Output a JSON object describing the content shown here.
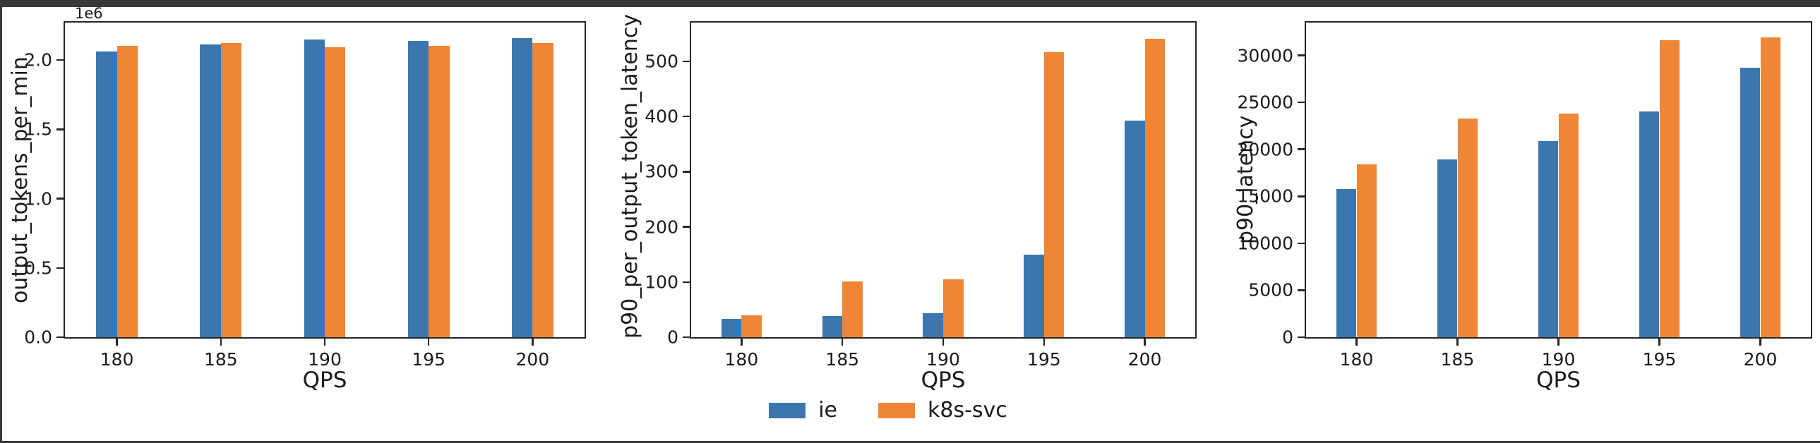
{
  "window": {
    "frame_color": "#38383a",
    "background": "#ffffff",
    "axis_color": "#262626",
    "text_color": "#1a1a1a"
  },
  "legend": {
    "items": [
      {
        "label": "ie",
        "color": "#3b76af"
      },
      {
        "label": "k8s-svc",
        "color": "#ee8636"
      }
    ],
    "position": "figure-bottom-center"
  },
  "chart_data": [
    {
      "type": "bar",
      "title": "",
      "ylabel": "output_tokens_per_min",
      "xlabel": "QPS",
      "y_offset_text": "1e6",
      "categories": [
        "180",
        "185",
        "190",
        "195",
        "200"
      ],
      "series": [
        {
          "name": "ie",
          "color": "#3b76af",
          "values": [
            2060000,
            2110000,
            2150000,
            2140000,
            2160000
          ]
        },
        {
          "name": "k8s-svc",
          "color": "#ee8636",
          "values": [
            2100000,
            2120000,
            2090000,
            2100000,
            2120000
          ]
        }
      ],
      "ylim": [
        0,
        2270000
      ],
      "yticks": [
        {
          "value": 0,
          "label": "0.0"
        },
        {
          "value": 500000,
          "label": "0.5"
        },
        {
          "value": 1000000,
          "label": "1.0"
        },
        {
          "value": 1500000,
          "label": "1.5"
        },
        {
          "value": 2000000,
          "label": "2.0"
        }
      ],
      "grid": false
    },
    {
      "type": "bar",
      "title": "",
      "ylabel": "p90_per_output_token_latency",
      "xlabel": "QPS",
      "y_offset_text": "",
      "categories": [
        "180",
        "185",
        "190",
        "195",
        "200"
      ],
      "series": [
        {
          "name": "ie",
          "color": "#3b76af",
          "values": [
            33,
            38,
            44,
            150,
            393
          ]
        },
        {
          "name": "k8s-svc",
          "color": "#ee8636",
          "values": [
            40,
            101,
            105,
            516,
            540
          ]
        }
      ],
      "ylim": [
        0,
        570
      ],
      "yticks": [
        {
          "value": 0,
          "label": "0"
        },
        {
          "value": 100,
          "label": "100"
        },
        {
          "value": 200,
          "label": "200"
        },
        {
          "value": 300,
          "label": "300"
        },
        {
          "value": 400,
          "label": "400"
        },
        {
          "value": 500,
          "label": "500"
        }
      ],
      "grid": false
    },
    {
      "type": "bar",
      "title": "",
      "ylabel": "p90_latency",
      "xlabel": "QPS",
      "y_offset_text": "",
      "categories": [
        "180",
        "185",
        "190",
        "195",
        "200"
      ],
      "series": [
        {
          "name": "ie",
          "color": "#3b76af",
          "values": [
            15800,
            18900,
            20900,
            24000,
            28700
          ]
        },
        {
          "name": "k8s-svc",
          "color": "#ee8636",
          "values": [
            18400,
            23250,
            23800,
            31600,
            31900
          ]
        }
      ],
      "ylim": [
        0,
        33500
      ],
      "yticks": [
        {
          "value": 0,
          "label": "0"
        },
        {
          "value": 5000,
          "label": "5000"
        },
        {
          "value": 10000,
          "label": "10000"
        },
        {
          "value": 15000,
          "label": "15000"
        },
        {
          "value": 20000,
          "label": "20000"
        },
        {
          "value": 25000,
          "label": "25000"
        },
        {
          "value": 30000,
          "label": "30000"
        }
      ],
      "grid": false
    }
  ]
}
